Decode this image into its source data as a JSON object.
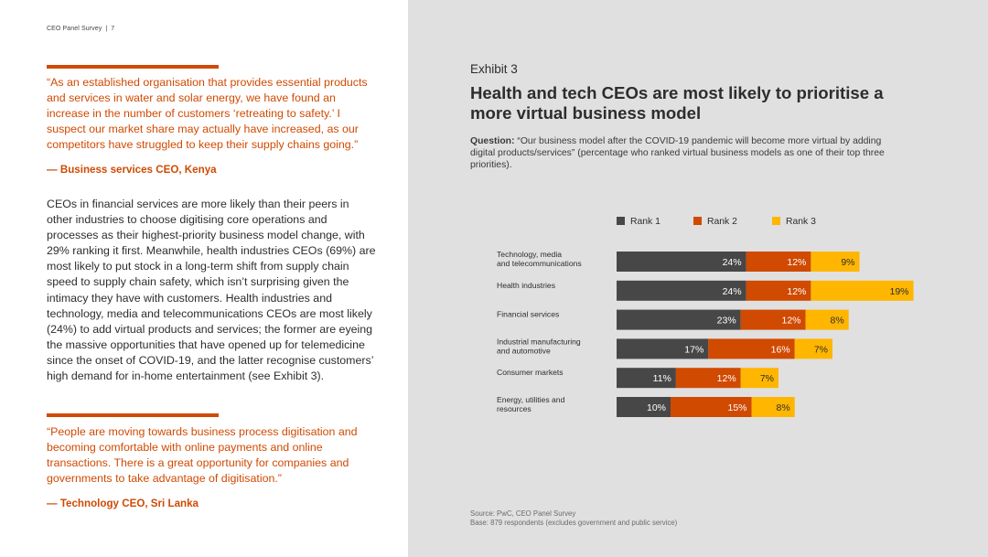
{
  "header": {
    "title": "CEO Panel Survey",
    "separator": "|",
    "page": "7"
  },
  "quote1": {
    "text": "“As an established organisation that provides essential products and services in water and solar energy, we have found an increase in the number of customers ‘retreating to safety.’ I suspect our market share may actually have increased, as our competitors have struggled to keep their supply chains going.”",
    "attribution": "— Business services CEO, Kenya"
  },
  "body": {
    "text": "CEOs in financial services are more likely than their peers in other industries to choose digitising core operations and processes as their highest-priority business model change, with 29% ranking it first. Meanwhile, health industries CEOs (69%) are most likely to put stock in a long-term shift from supply chain speed to supply chain safety, which isn’t surprising given the intimacy they have with customers. Health industries and technology, media and telecommunications CEOs are most likely (24%) to add virtual products and services; the former are eyeing the massive opportunities that have opened up for telemedicine since the onset of COVID-19, and the latter recognise customers’ high demand for in-home entertainment (see Exhibit 3)."
  },
  "quote2": {
    "text": "“People are moving towards business process digitisation and becoming comfortable with online payments and online transactions. There is a great opportunity for companies and governments to take advantage of digitisation.”",
    "attribution": "— Technology CEO, Sri Lanka"
  },
  "exhibit": {
    "label": "Exhibit 3",
    "title": "Health and tech CEOs are most likely to prioritise a more virtual business model",
    "question_label": "Question:",
    "question_text": "“Our business model after the COVID-19 pandemic will become more virtual by adding digital products/services” (percentage who ranked virtual business models as one of their top three priorities).",
    "source": "Source: PwC, CEO Panel Survey",
    "base": "Base: 879 respondents (excludes government and public service)"
  },
  "colors": {
    "rank1": "#474747",
    "rank2": "#d04a02",
    "rank3": "#ffb600",
    "accent": "#d04a02"
  },
  "chart_data": {
    "type": "bar",
    "orientation": "horizontal",
    "stacked": true,
    "categories": [
      [
        "Technology, media",
        "and telecommunications"
      ],
      [
        "Health industries"
      ],
      [
        "Financial services"
      ],
      [
        "Industrial manufacturing",
        "and automotive"
      ],
      [
        "Consumer markets"
      ],
      [
        "Energy, utilities and",
        "resources"
      ]
    ],
    "series": [
      {
        "name": "Rank 1",
        "values": [
          24,
          24,
          23,
          17,
          11,
          10
        ]
      },
      {
        "name": "Rank 2",
        "values": [
          12,
          12,
          12,
          16,
          12,
          15
        ]
      },
      {
        "name": "Rank 3",
        "values": [
          9,
          19,
          8,
          7,
          7,
          8
        ]
      }
    ],
    "unit": "%",
    "legend_position": "top"
  }
}
